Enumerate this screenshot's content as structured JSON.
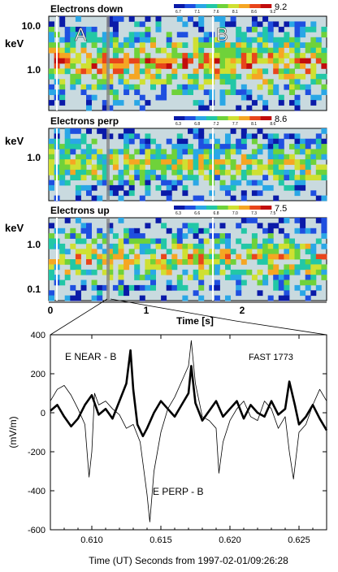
{
  "spectrograms": {
    "panels": [
      {
        "title": "Electrons down",
        "cbar_max": "9.2",
        "cbar_ticks": [
          "6.7",
          "7.1",
          "7.6",
          "8.1",
          "8.6",
          "9.2"
        ],
        "yticks": [
          "10.0",
          "1.0"
        ],
        "ylabel": "keV",
        "density": 0.78,
        "hot": 0.55
      },
      {
        "title": "Electrons perp",
        "cbar_max": "8.6",
        "cbar_ticks": [
          "6.3",
          "6.8",
          "7.2",
          "7.7",
          "8.1",
          "8.6"
        ],
        "yticks": [
          "1.0"
        ],
        "ylabel": "keV",
        "density": 0.82,
        "hot": 0.25
      },
      {
        "title": "Electrons up",
        "cbar_max": "7.5",
        "cbar_ticks": [
          "6.3",
          "6.6",
          "6.8",
          "7.0",
          "7.3",
          "7.5"
        ],
        "yticks": [
          "1.0",
          "0.1"
        ],
        "ylabel": "keV",
        "density": 0.7,
        "hot": 0.35
      }
    ],
    "markers": [
      "A",
      "B"
    ],
    "xticks": [
      "0",
      "1",
      "2"
    ],
    "xlabel": "Time [s]"
  },
  "chart_data": {
    "type": "line",
    "title": "",
    "xlabel": "Time (UT) Seconds from 1997-02-01/09:26:28",
    "ylabel": "(mV/m)",
    "xlim": [
      0.607,
      0.627
    ],
    "ylim": [
      -600,
      400
    ],
    "xticks": [
      "0.610",
      "0.615",
      "0.620",
      "0.625"
    ],
    "yticks": [
      "400",
      "200",
      "0",
      "-200",
      "-400",
      "-600"
    ],
    "annotations": [
      "E NEAR - B",
      "FAST 1773",
      "E PERP - B"
    ],
    "series": [
      {
        "name": "E NEAR - B",
        "style": "thick",
        "x": [
          0.607,
          0.6075,
          0.608,
          0.6085,
          0.609,
          0.6095,
          0.61,
          0.6105,
          0.611,
          0.6115,
          0.612,
          0.6125,
          0.6128,
          0.613,
          0.6133,
          0.6137,
          0.614,
          0.6145,
          0.615,
          0.6155,
          0.616,
          0.6165,
          0.617,
          0.6172,
          0.6175,
          0.618,
          0.6185,
          0.619,
          0.6195,
          0.62,
          0.6205,
          0.621,
          0.6215,
          0.622,
          0.6225,
          0.623,
          0.6235,
          0.624,
          0.6243,
          0.6247,
          0.625,
          0.6255,
          0.626,
          0.6265,
          0.627
        ],
        "y": [
          10,
          40,
          -20,
          -70,
          -30,
          40,
          90,
          -10,
          20,
          -30,
          60,
          150,
          320,
          120,
          -60,
          -120,
          -80,
          0,
          60,
          20,
          -20,
          40,
          100,
          240,
          50,
          -40,
          10,
          60,
          -20,
          20,
          60,
          -30,
          40,
          0,
          -20,
          60,
          -10,
          20,
          160,
          40,
          -60,
          -20,
          40,
          -30,
          -90
        ]
      },
      {
        "name": "E PERP - B",
        "style": "thin",
        "x": [
          0.607,
          0.6075,
          0.608,
          0.6085,
          0.609,
          0.6095,
          0.6098,
          0.61,
          0.6102,
          0.6105,
          0.611,
          0.6115,
          0.612,
          0.6125,
          0.613,
          0.6135,
          0.614,
          0.6142,
          0.6145,
          0.615,
          0.6155,
          0.616,
          0.6165,
          0.617,
          0.6172,
          0.6175,
          0.618,
          0.6185,
          0.619,
          0.6192,
          0.6195,
          0.62,
          0.6205,
          0.621,
          0.6215,
          0.622,
          0.6225,
          0.623,
          0.6235,
          0.624,
          0.6243,
          0.6246,
          0.625,
          0.6255,
          0.626,
          0.6265,
          0.627
        ],
        "y": [
          60,
          120,
          140,
          90,
          20,
          -60,
          -330,
          -200,
          100,
          40,
          60,
          20,
          -10,
          -80,
          -60,
          -150,
          -420,
          -560,
          -300,
          -100,
          20,
          80,
          160,
          240,
          370,
          150,
          -20,
          -40,
          -80,
          -310,
          -150,
          -40,
          20,
          60,
          -20,
          -40,
          60,
          20,
          -80,
          -20,
          -200,
          -340,
          -100,
          -60,
          40,
          120,
          60
        ]
      }
    ]
  }
}
